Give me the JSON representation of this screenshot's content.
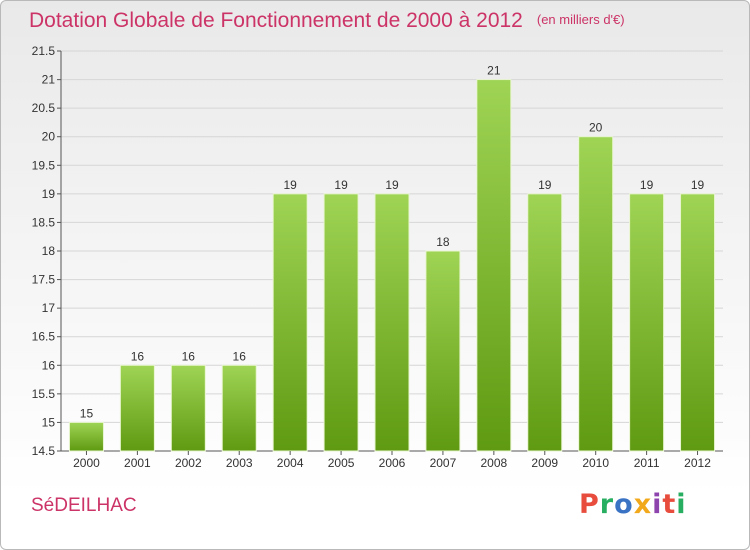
{
  "header": {
    "title": "Dotation Globale de Fonctionnement de 2000 à 2012",
    "unit": "(en milliers d'€)"
  },
  "footer": {
    "commune": "SéDEILHAC",
    "brand": "Proxiti",
    "brand_colors": [
      "#e74c3c",
      "#27ae60",
      "#3b73c4",
      "#f1a81b",
      "#8e44ad",
      "#e74c3c",
      "#27ae60"
    ]
  },
  "colors": {
    "bar_light": "#9fd454",
    "bar_dark": "#5f9a12",
    "title": "#cc3366",
    "axis": "#555555"
  },
  "chart_data": {
    "type": "bar",
    "categories": [
      "2000",
      "2001",
      "2002",
      "2003",
      "2004",
      "2005",
      "2006",
      "2007",
      "2008",
      "2009",
      "2010",
      "2011",
      "2012"
    ],
    "values": [
      15,
      16,
      16,
      16,
      19,
      19,
      19,
      18,
      21,
      19,
      20,
      19,
      19
    ],
    "data_labels": [
      "15",
      "16",
      "16",
      "16",
      "19",
      "19",
      "19",
      "18",
      "21",
      "19",
      "20",
      "19",
      "19"
    ],
    "ylim": [
      14.5,
      21.5
    ],
    "yticks": [
      "14.5",
      "15",
      "15.5",
      "16",
      "16.5",
      "17",
      "17.5",
      "18",
      "18.5",
      "19",
      "19.5",
      "20",
      "20.5",
      "21",
      "21.5"
    ],
    "grid": true,
    "xlabel": "",
    "ylabel": ""
  }
}
